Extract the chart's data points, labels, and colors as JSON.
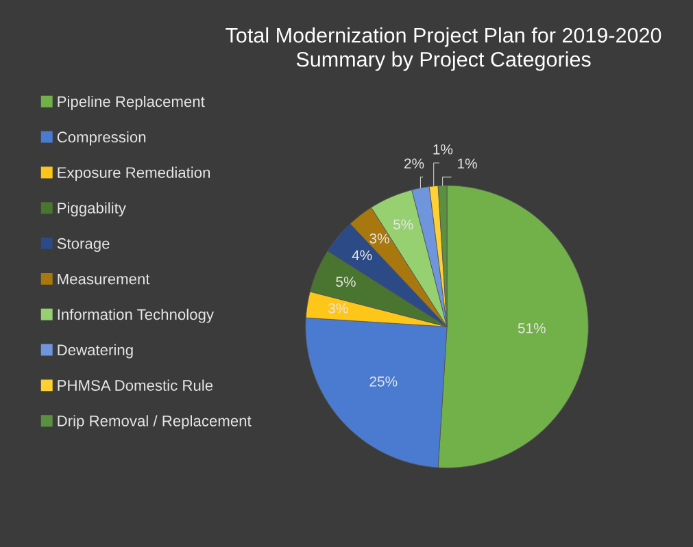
{
  "chart_data": {
    "type": "pie",
    "title": "Total Modernization Project Plan for 2019-2020\nSummary by Project Categories",
    "categories": [
      "Pipeline Replacement",
      "Compression",
      "Exposure Remediation",
      "Piggability",
      "Storage",
      "Measurement",
      "Information Technology",
      "Dewatering",
      "PHMSA Domestic Rule",
      "Drip Removal / Replacement"
    ],
    "values": [
      51,
      25,
      3,
      5,
      4,
      3,
      5,
      2,
      1,
      1
    ],
    "value_labels": [
      "51%",
      "25%",
      "3%",
      "5%",
      "4%",
      "3%",
      "5%",
      "2%",
      "1%",
      "1%"
    ],
    "colors": [
      "#72b04a",
      "#4a7bd0",
      "#ffc61a",
      "#4a7530",
      "#2c4a85",
      "#a8780f",
      "#96d070",
      "#6f96dc",
      "#ffd033",
      "#5a9040"
    ],
    "legend": "left"
  }
}
